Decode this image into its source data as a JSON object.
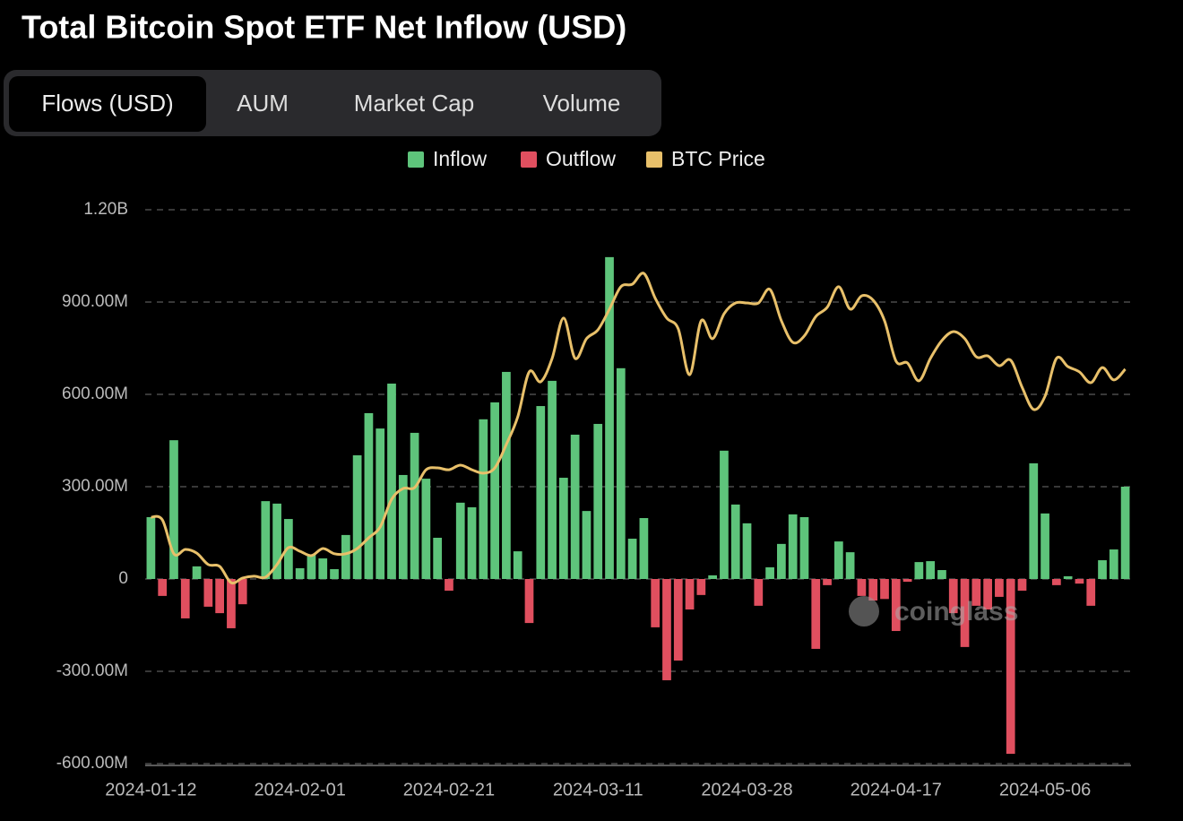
{
  "chart_data": {
    "type": "bar",
    "title": "Total Bitcoin Spot ETF Net Inflow (USD)",
    "tabs": [
      "Flows (USD)",
      "AUM",
      "Market Cap",
      "Volume"
    ],
    "active_tab": 0,
    "watermark": "coinglass",
    "categories": [
      "2024-01-12",
      null,
      null,
      null,
      null,
      null,
      null,
      null,
      null,
      null,
      null,
      null,
      null,
      "2024-02-01",
      null,
      null,
      null,
      null,
      null,
      null,
      null,
      null,
      null,
      null,
      null,
      null,
      "2024-02-21",
      null,
      null,
      null,
      null,
      null,
      null,
      null,
      null,
      null,
      null,
      null,
      null,
      "2024-03-11",
      null,
      null,
      null,
      null,
      null,
      null,
      null,
      null,
      null,
      null,
      null,
      null,
      "2024-03-28",
      null,
      null,
      null,
      null,
      null,
      null,
      null,
      null,
      null,
      null,
      null,
      null,
      "2024-04-17",
      null,
      null,
      null,
      null,
      null,
      null,
      null,
      null,
      null,
      null,
      null,
      null,
      "2024-05-06",
      null,
      null,
      null,
      null,
      null,
      null,
      null
    ],
    "series": [
      {
        "name": "Inflow",
        "color": "#5ec47b",
        "values": [
          201000000.0,
          null,
          451000000.0,
          null,
          41000000.0,
          null,
          null,
          null,
          null,
          0,
          253000000.0,
          245000000.0,
          195000000.0,
          35000000.0,
          79000000.0,
          67000000.0,
          32000000.0,
          143000000.0,
          402000000.0,
          539000000.0,
          489000000.0,
          635000000.0,
          338000000.0,
          475000000.0,
          326000000.0,
          134000000.0,
          null,
          248000000.0,
          233000000.0,
          519000000.0,
          574000000.0,
          673000000.0,
          90000000.0,
          null,
          562000000.0,
          644000000.0,
          329000000.0,
          469000000.0,
          221000000.0,
          504000000.0,
          1046000000.0,
          685000000.0,
          131000000.0,
          198000000.0,
          null,
          null,
          null,
          null,
          null,
          12000000.0,
          417000000.0,
          242000000.0,
          181000000.0,
          null,
          38000000.0,
          114000000.0,
          210000000.0,
          201000000.0,
          null,
          null,
          122000000.0,
          87000000.0,
          null,
          null,
          null,
          null,
          null,
          55000000.0,
          58000000.0,
          29000000.0,
          null,
          null,
          null,
          null,
          null,
          null,
          null,
          376000000.0,
          213000000.0,
          null,
          9000000.0,
          null,
          null,
          61000000.0,
          96000000.0,
          300000000.0
        ]
      },
      {
        "name": "Outflow",
        "color": "#e04f5f",
        "values": [
          null,
          -55000000.0,
          null,
          -128000000.0,
          null,
          -90000000.0,
          -111000000.0,
          -160000000.0,
          -82000000.0,
          null,
          null,
          null,
          null,
          null,
          null,
          null,
          null,
          null,
          null,
          null,
          null,
          null,
          null,
          null,
          null,
          null,
          -38000000.0,
          null,
          null,
          null,
          null,
          null,
          null,
          -143000000.0,
          null,
          null,
          null,
          null,
          null,
          null,
          null,
          null,
          null,
          null,
          -157000000.0,
          -329000000.0,
          -265000000.0,
          -99000000.0,
          -52000000.0,
          null,
          null,
          null,
          null,
          -87000000.0,
          null,
          null,
          null,
          null,
          -227000000.0,
          -20000000.0,
          null,
          null,
          -55000000.0,
          -70000000.0,
          -65000000.0,
          -169000000.0,
          -9000000.0,
          null,
          null,
          null,
          -111000000.0,
          -221000000.0,
          -87000000.0,
          -99000000.0,
          -58000000.0,
          -568000000.0,
          -38000000.0,
          null,
          null,
          -20000000.0,
          null,
          -15000000.0,
          -87000000.0,
          null,
          null,
          null
        ]
      },
      {
        "name": "BTC Price",
        "type": "line",
        "color": "#e8c06a",
        "values": [
          201000000.0,
          192000000.0,
          82000000.0,
          96000000.0,
          84000000.0,
          47000000.0,
          41000000.0,
          -12000000.0,
          3000000.0,
          9000000.0,
          6000000.0,
          47000000.0,
          102000000.0,
          90000000.0,
          76000000.0,
          99000000.0,
          82000000.0,
          82000000.0,
          99000000.0,
          134000000.0,
          169000000.0,
          259000000.0,
          294000000.0,
          297000000.0,
          355000000.0,
          361000000.0,
          355000000.0,
          370000000.0,
          355000000.0,
          344000000.0,
          361000000.0,
          437000000.0,
          527000000.0,
          673000000.0,
          641000000.0,
          717000000.0,
          848000000.0,
          717000000.0,
          781000000.0,
          810000000.0,
          877000000.0,
          950000000.0,
          958000000.0,
          993000000.0,
          912000000.0,
          848000000.0,
          813000000.0,
          664000000.0,
          839000000.0,
          781000000.0,
          862000000.0,
          897000000.0,
          897000000.0,
          897000000.0,
          941000000.0,
          839000000.0,
          769000000.0,
          790000000.0,
          853000000.0,
          883000000.0,
          950000000.0,
          877000000.0,
          920000000.0,
          906000000.0,
          839000000.0,
          708000000.0,
          702000000.0,
          644000000.0,
          717000000.0,
          775000000.0,
          804000000.0,
          781000000.0,
          722000000.0,
          725000000.0,
          693000000.0,
          711000000.0,
          623000000.0,
          551000000.0,
          594000000.0,
          717000000.0,
          690000000.0,
          673000000.0,
          638000000.0,
          687000000.0,
          647000000.0,
          682000000.0
        ]
      }
    ],
    "ylim": [
      -600000000.0,
      1200000000.0
    ],
    "yticks": [
      {
        "value": 1200000000.0,
        "label": "1.20B"
      },
      {
        "value": 900000000.0,
        "label": "900.00M"
      },
      {
        "value": 600000000.0,
        "label": "600.00M"
      },
      {
        "value": 300000000.0,
        "label": "300.00M"
      },
      0,
      {
        "value": -300000000.0,
        "label": "-300.00M"
      },
      {
        "value": -600000000.0,
        "label": "-600.00M"
      }
    ],
    "grid": true
  }
}
